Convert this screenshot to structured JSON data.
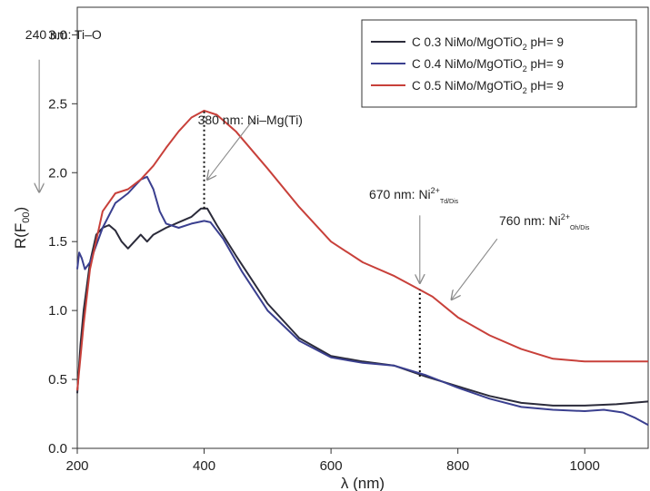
{
  "chart_data": {
    "type": "line",
    "xlabel": "λ (nm)",
    "ylabel": "R(F",
    "ylabel_sub": "00",
    "ylabel_close": ")",
    "xlim": [
      200,
      1100
    ],
    "ylim": [
      0,
      3.2
    ],
    "xticks": [
      200,
      400,
      600,
      800,
      1000
    ],
    "xtick_labels": [
      "200",
      "400",
      "600",
      "800",
      "1000"
    ],
    "yticks": [
      0,
      0.5,
      1.0,
      1.5,
      2.0,
      2.5,
      3.0
    ],
    "ytick_labels": [
      "0.0",
      "0.5",
      "1.0",
      "1.5",
      "2.0",
      "2.5",
      "3.0"
    ],
    "grid": false,
    "legend_position": "top-right",
    "series": [
      {
        "name": "C 0.3 NiMo/MgOTiO",
        "name_sub": "2",
        "name_suffix": " pH= 9",
        "color": "#2b2b3a",
        "points": [
          [
            200,
            0.4
          ],
          [
            205,
            0.75
          ],
          [
            210,
            1.0
          ],
          [
            220,
            1.35
          ],
          [
            230,
            1.55
          ],
          [
            240,
            1.6
          ],
          [
            250,
            1.62
          ],
          [
            260,
            1.58
          ],
          [
            270,
            1.5
          ],
          [
            280,
            1.45
          ],
          [
            290,
            1.5
          ],
          [
            300,
            1.55
          ],
          [
            310,
            1.5
          ],
          [
            320,
            1.55
          ],
          [
            340,
            1.6
          ],
          [
            360,
            1.64
          ],
          [
            380,
            1.68
          ],
          [
            395,
            1.74
          ],
          [
            405,
            1.74
          ],
          [
            420,
            1.62
          ],
          [
            450,
            1.4
          ],
          [
            500,
            1.05
          ],
          [
            550,
            0.8
          ],
          [
            600,
            0.67
          ],
          [
            650,
            0.63
          ],
          [
            700,
            0.6
          ],
          [
            750,
            0.52
          ],
          [
            800,
            0.45
          ],
          [
            850,
            0.38
          ],
          [
            900,
            0.33
          ],
          [
            950,
            0.31
          ],
          [
            1000,
            0.31
          ],
          [
            1050,
            0.32
          ],
          [
            1100,
            0.34
          ]
        ]
      },
      {
        "name": "C 0.4 NiMo/MgOTiO",
        "name_sub": "2",
        "name_suffix": " pH= 9",
        "color": "#3a3f8f",
        "points": [
          [
            200,
            1.3
          ],
          [
            203,
            1.42
          ],
          [
            207,
            1.38
          ],
          [
            212,
            1.3
          ],
          [
            220,
            1.35
          ],
          [
            240,
            1.6
          ],
          [
            260,
            1.78
          ],
          [
            280,
            1.85
          ],
          [
            300,
            1.95
          ],
          [
            310,
            1.97
          ],
          [
            320,
            1.88
          ],
          [
            330,
            1.72
          ],
          [
            340,
            1.63
          ],
          [
            360,
            1.6
          ],
          [
            380,
            1.63
          ],
          [
            400,
            1.65
          ],
          [
            410,
            1.64
          ],
          [
            430,
            1.52
          ],
          [
            460,
            1.28
          ],
          [
            500,
            1.0
          ],
          [
            550,
            0.78
          ],
          [
            600,
            0.66
          ],
          [
            650,
            0.62
          ],
          [
            700,
            0.6
          ],
          [
            750,
            0.53
          ],
          [
            800,
            0.44
          ],
          [
            850,
            0.36
          ],
          [
            900,
            0.3
          ],
          [
            950,
            0.28
          ],
          [
            1000,
            0.27
          ],
          [
            1030,
            0.28
          ],
          [
            1060,
            0.26
          ],
          [
            1080,
            0.22
          ],
          [
            1100,
            0.17
          ]
        ]
      },
      {
        "name": "C 0.5 NiMo/MgOTiO",
        "name_sub": "2",
        "name_suffix": " pH= 9",
        "color": "#c8403a",
        "points": [
          [
            200,
            0.42
          ],
          [
            210,
            0.9
          ],
          [
            220,
            1.3
          ],
          [
            240,
            1.72
          ],
          [
            260,
            1.85
          ],
          [
            280,
            1.88
          ],
          [
            300,
            1.95
          ],
          [
            320,
            2.05
          ],
          [
            340,
            2.18
          ],
          [
            360,
            2.3
          ],
          [
            380,
            2.4
          ],
          [
            400,
            2.45
          ],
          [
            420,
            2.42
          ],
          [
            450,
            2.3
          ],
          [
            500,
            2.03
          ],
          [
            550,
            1.75
          ],
          [
            600,
            1.5
          ],
          [
            650,
            1.35
          ],
          [
            700,
            1.25
          ],
          [
            740,
            1.15
          ],
          [
            760,
            1.1
          ],
          [
            800,
            0.95
          ],
          [
            850,
            0.82
          ],
          [
            900,
            0.72
          ],
          [
            950,
            0.65
          ],
          [
            1000,
            0.63
          ],
          [
            1050,
            0.63
          ],
          [
            1100,
            0.63
          ]
        ]
      }
    ],
    "dotted_lines": [
      {
        "x": 400,
        "y_from": 1.74,
        "y_to": 2.45
      },
      {
        "x": 740,
        "y_from": 0.52,
        "y_to": 1.15
      }
    ],
    "annotations": [
      {
        "id": "a240",
        "text": "240 nm: Ti–O",
        "sup": "",
        "sub": "",
        "text_x": 118,
        "text_y": 2.97,
        "arrow_from": [
          140,
          2.82
        ],
        "arrow_to": [
          140,
          1.86
        ]
      },
      {
        "id": "a380",
        "text": "380 nm: Ni–Mg(Ti)",
        "sup": "",
        "sub": "",
        "text_x": 390,
        "text_y": 2.35,
        "arrow_from": [
          480,
          2.4
        ],
        "arrow_to": [
          405,
          1.95
        ]
      },
      {
        "id": "a670",
        "text": "670 nm: Ni",
        "sup": "2+",
        "sub": "Td/Dis",
        "text_x": 660,
        "text_y": 1.81,
        "arrow_from": [
          740,
          1.69
        ],
        "arrow_to": [
          740,
          1.2
        ]
      },
      {
        "id": "a760",
        "text": "760 nm: Ni",
        "sup": "2+",
        "sub": "Oh/Dis",
        "text_x": 865,
        "text_y": 1.62,
        "arrow_from": [
          862,
          1.52
        ],
        "arrow_to": [
          790,
          1.08
        ]
      }
    ]
  }
}
